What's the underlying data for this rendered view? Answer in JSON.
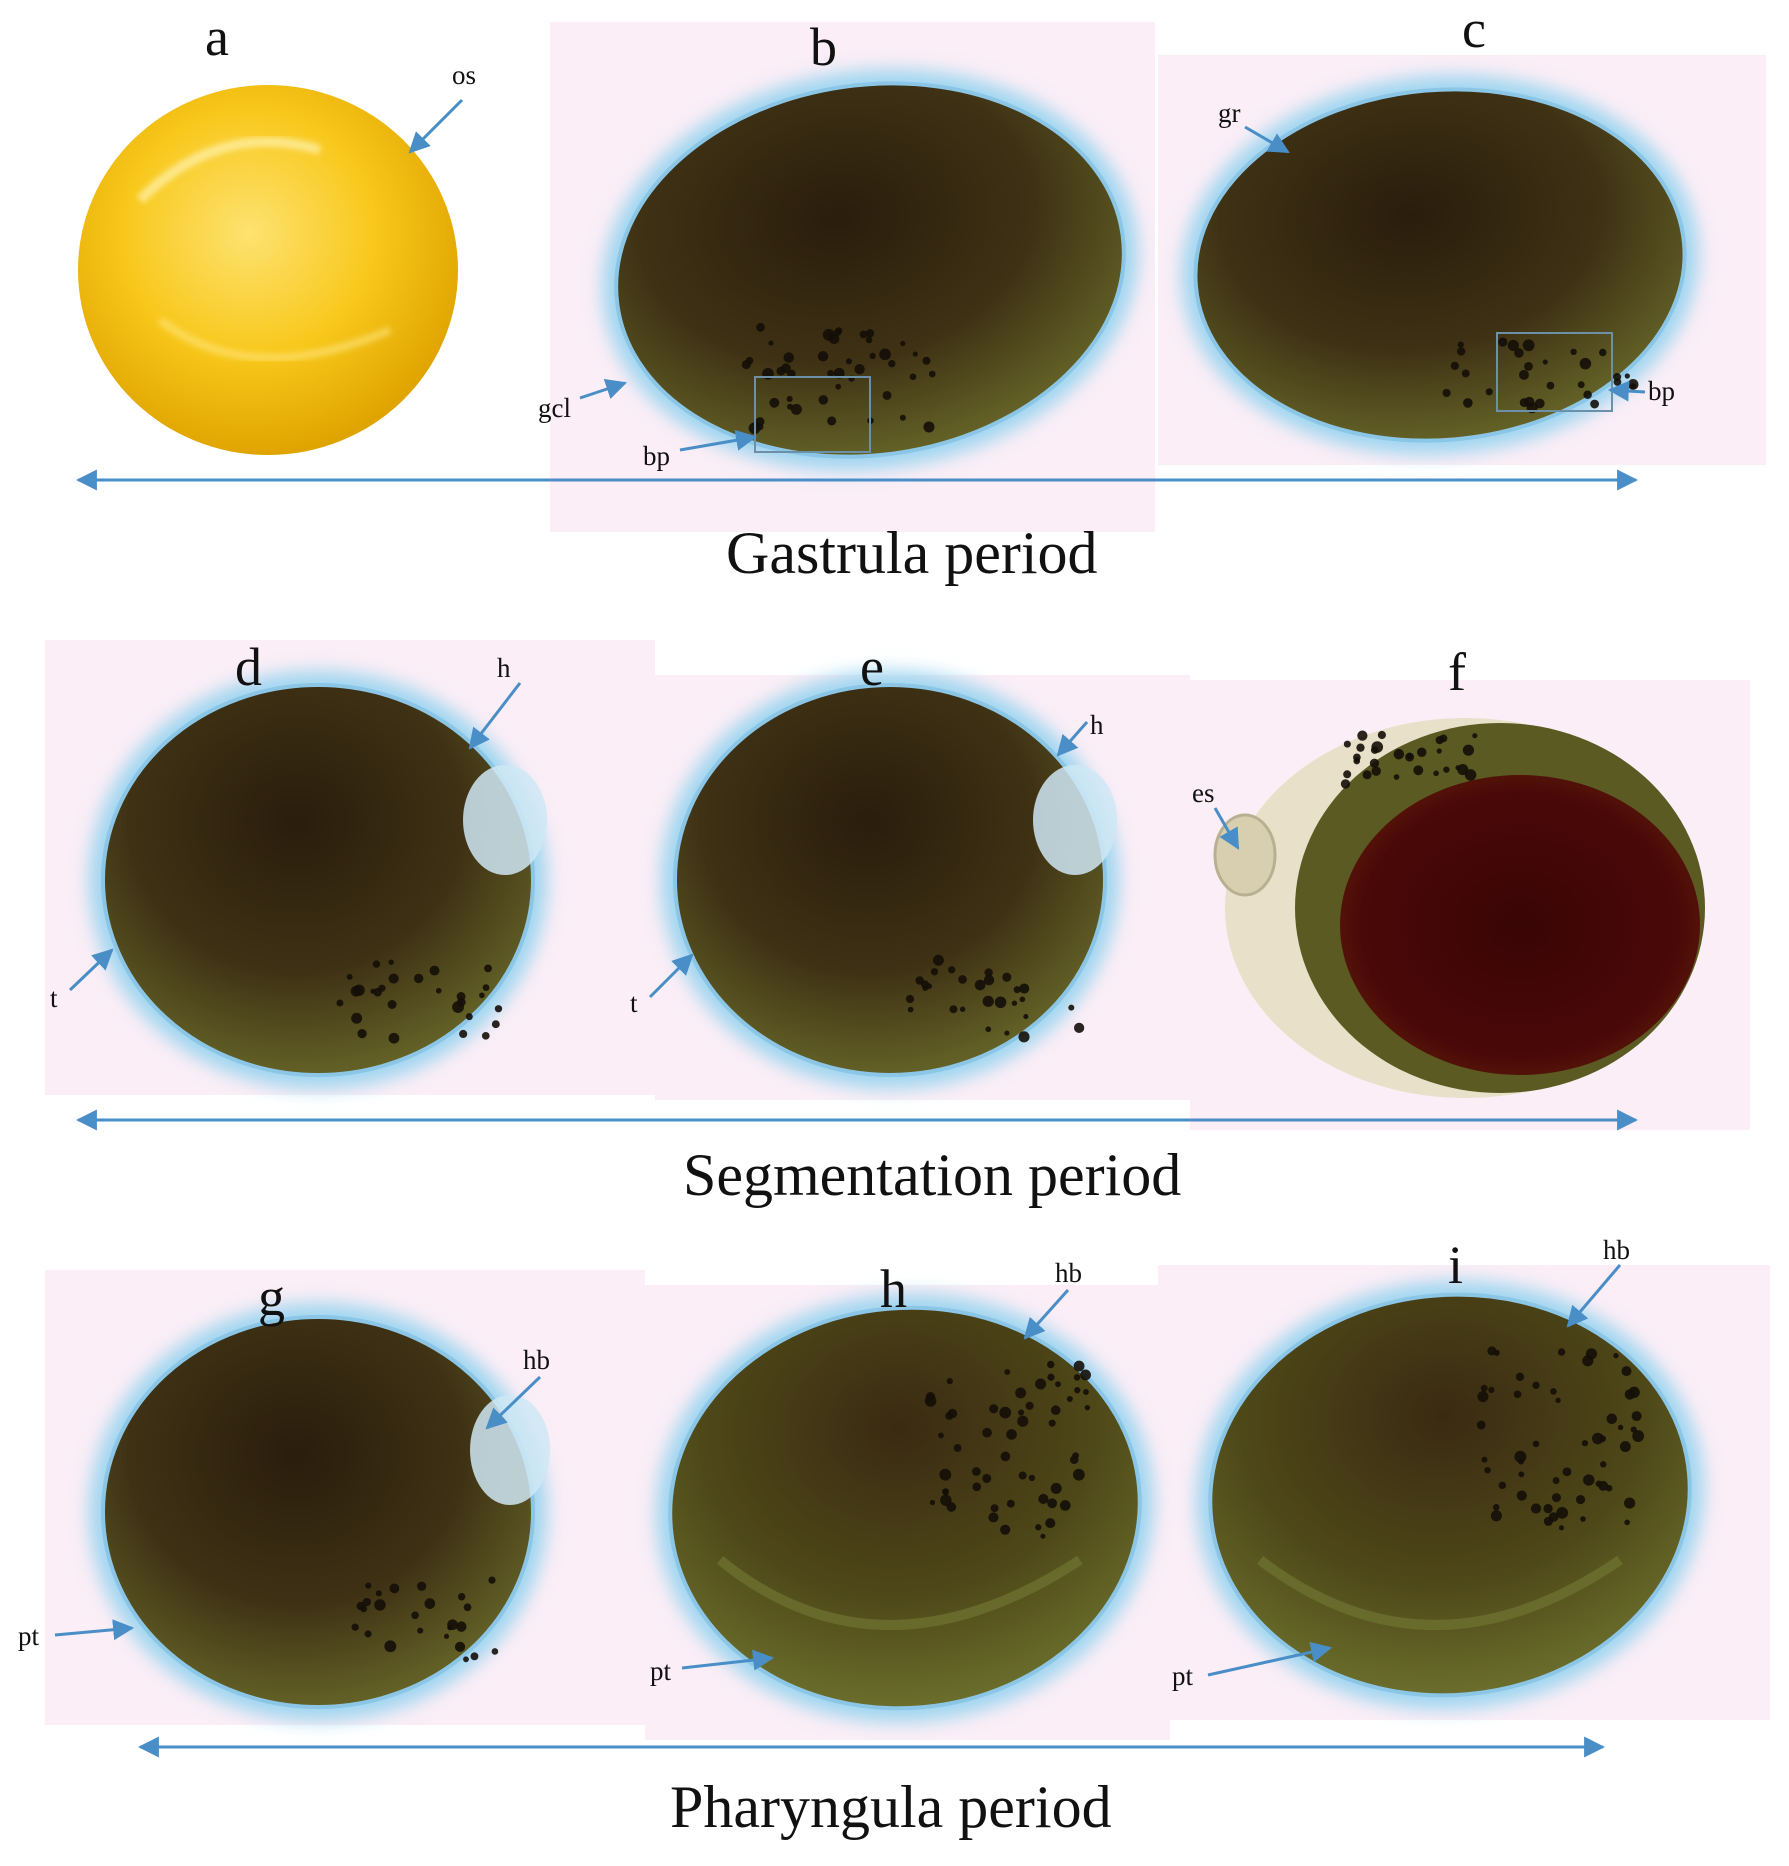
{
  "colors": {
    "arrow": "#4a8ec7",
    "panel_bg": "#fbeef6",
    "yolk_dark": "#3a2a12",
    "yolk_olive": "#5a5a22",
    "chorion_glow": "#9fd6f0",
    "egg_yellow": "#f8c81c",
    "red_yolk": "#4a0808"
  },
  "panels": [
    {
      "id": "a",
      "label": "a",
      "type": "yellow-egg"
    },
    {
      "id": "b",
      "label": "b",
      "type": "gastrula"
    },
    {
      "id": "c",
      "label": "c",
      "type": "gastrula"
    },
    {
      "id": "d",
      "label": "d",
      "type": "segmentation"
    },
    {
      "id": "e",
      "label": "e",
      "type": "segmentation"
    },
    {
      "id": "f",
      "label": "f",
      "type": "red-yolk"
    },
    {
      "id": "g",
      "label": "g",
      "type": "pharyngula"
    },
    {
      "id": "h",
      "label": "h",
      "type": "pharyngula"
    },
    {
      "id": "i",
      "label": "i",
      "type": "pharyngula"
    }
  ],
  "annotations": [
    {
      "panel": "a",
      "text": "os"
    },
    {
      "panel": "b",
      "text": "gcl"
    },
    {
      "panel": "b",
      "text": "bp"
    },
    {
      "panel": "c",
      "text": "gr"
    },
    {
      "panel": "c",
      "text": "bp"
    },
    {
      "panel": "d",
      "text": "h"
    },
    {
      "panel": "d",
      "text": "t"
    },
    {
      "panel": "e",
      "text": "h"
    },
    {
      "panel": "e",
      "text": "t"
    },
    {
      "panel": "f",
      "text": "es"
    },
    {
      "panel": "g",
      "text": "hb"
    },
    {
      "panel": "g",
      "text": "pt"
    },
    {
      "panel": "h",
      "text": "hb"
    },
    {
      "panel": "h",
      "text": "pt"
    },
    {
      "panel": "i",
      "text": "hb"
    },
    {
      "panel": "i",
      "text": "pt"
    }
  ],
  "periods": [
    {
      "label": "Gastrula period"
    },
    {
      "label": "Segmentation period"
    },
    {
      "label": "Pharyngula period"
    }
  ]
}
